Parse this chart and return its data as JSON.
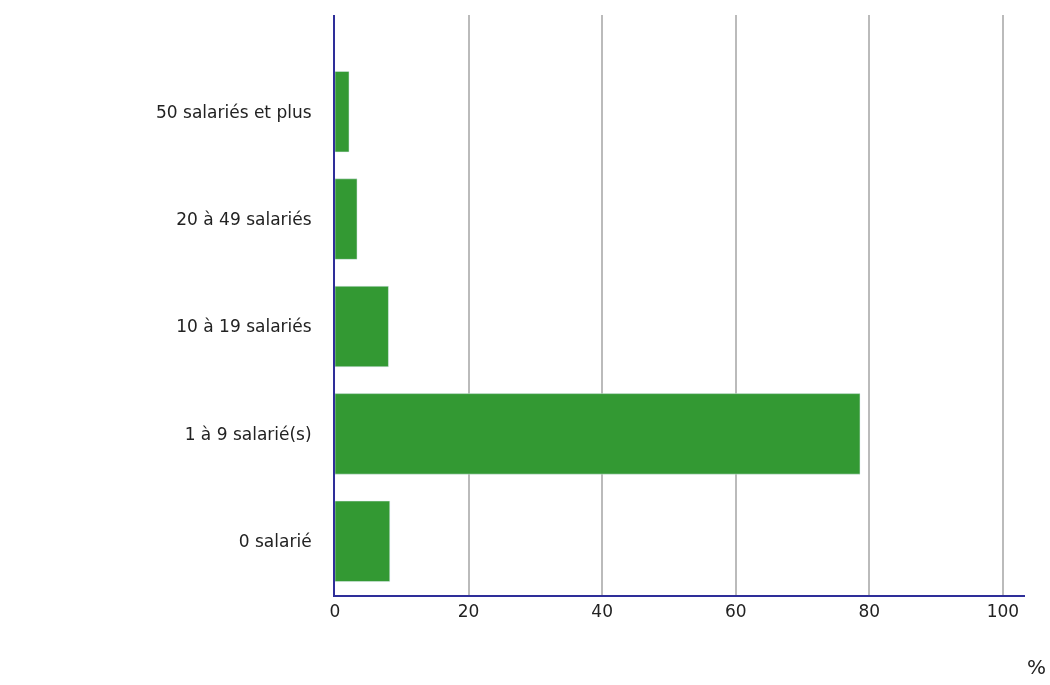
{
  "chart_data": {
    "type": "bar",
    "orientation": "horizontal",
    "xlabel": "%",
    "categories": [
      "50 salariés et plus",
      "20 à 49 salariés",
      "10 à 19 salariés",
      "1 à 9 salarié(s)",
      "0 salarié"
    ],
    "values": [
      2.1,
      3.3,
      8.0,
      78.6,
      8.2
    ],
    "color": "#339933",
    "xlim": [
      0,
      103.3
    ],
    "xticks": [
      0,
      20,
      40,
      60,
      80,
      100
    ],
    "grid": "x"
  }
}
